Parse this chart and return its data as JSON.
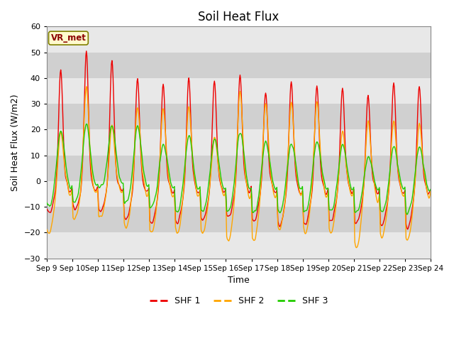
{
  "title": "Soil Heat Flux",
  "xlabel": "Time",
  "ylabel": "Soil Heat Flux (W/m2)",
  "ylim": [
    -30,
    60
  ],
  "yticks": [
    -30,
    -20,
    -10,
    0,
    10,
    20,
    30,
    40,
    50,
    60
  ],
  "color_shf1": "#EE0000",
  "color_shf2": "#FFA500",
  "color_shf3": "#22CC00",
  "label_shf1": "SHF 1",
  "label_shf2": "SHF 2",
  "label_shf3": "SHF 3",
  "annotation_text": "VR_met",
  "bg_color": "#DCDCDC",
  "fig_bg": "#FFFFFF",
  "start_day": 9,
  "end_day": 24,
  "title_fontsize": 12,
  "axis_fontsize": 9,
  "tick_fontsize": 7.5,
  "legend_fontsize": 9
}
